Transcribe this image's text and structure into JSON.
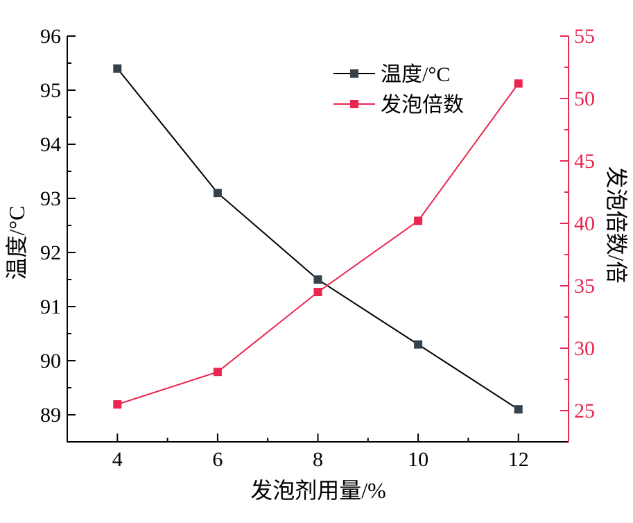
{
  "chart_data": {
    "type": "line",
    "x": [
      4,
      6,
      8,
      10,
      12
    ],
    "xlabel": "发泡剂用量/%",
    "ylabel": "温度/°C",
    "y2label": "发泡倍数/倍",
    "xlim": [
      3,
      13
    ],
    "ylim": [
      88.5,
      96
    ],
    "y2lim": [
      22.5,
      55
    ],
    "xticks": [
      4,
      6,
      8,
      10,
      12
    ],
    "yticks": [
      89,
      90,
      91,
      92,
      93,
      94,
      95,
      96
    ],
    "y2ticks": [
      25,
      30,
      35,
      40,
      45,
      50,
      55
    ],
    "grid": false,
    "legend": "top-center",
    "series": [
      {
        "name": "温度/°C",
        "yaxis": 1,
        "values": [
          95.4,
          93.1,
          91.5,
          90.3,
          89.1
        ],
        "line_color": "#000000",
        "marker_color": "#36424b"
      },
      {
        "name": "发泡倍数",
        "yaxis": 2,
        "values": [
          25.5,
          28.1,
          34.5,
          40.2,
          51.2
        ],
        "line_color": "#e8264f",
        "marker_color": "#e8264f"
      }
    ],
    "colors": {
      "left_axis": "#000000",
      "bottom_axis": "#000000",
      "right_axis": "#e8264f"
    }
  }
}
